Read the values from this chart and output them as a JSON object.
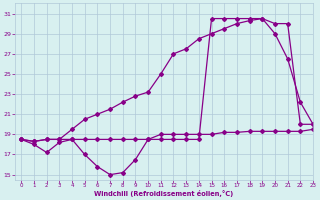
{
  "line1_x": [
    0,
    1,
    2,
    3,
    4,
    5,
    6,
    7,
    8,
    9,
    10,
    11,
    12,
    13,
    14,
    15,
    16,
    17,
    18,
    19,
    20,
    21,
    22,
    23
  ],
  "line1_y": [
    18.5,
    18.3,
    18.5,
    18.5,
    18.5,
    18.5,
    18.5,
    18.5,
    18.5,
    18.5,
    18.5,
    18.5,
    18.5,
    18.5,
    18.5,
    30.5,
    30.5,
    30.5,
    30.5,
    30.5,
    30.0,
    30.0,
    20.0,
    20.0
  ],
  "line2_x": [
    0,
    1,
    2,
    3,
    4,
    5,
    6,
    7,
    8,
    9,
    10,
    11,
    12,
    13,
    14,
    15,
    16,
    17,
    18,
    19,
    20,
    21,
    22,
    23
  ],
  "line2_y": [
    18.5,
    18.3,
    18.5,
    18.5,
    19.5,
    20.5,
    21.0,
    21.5,
    22.2,
    22.8,
    23.2,
    25.0,
    27.0,
    27.5,
    28.5,
    29.0,
    29.5,
    30.0,
    30.3,
    30.5,
    29.0,
    26.5,
    22.2,
    20.0
  ],
  "line3_x": [
    0,
    1,
    2,
    3,
    4,
    5,
    6,
    7,
    8,
    9,
    10,
    11,
    12,
    13,
    14,
    15,
    16,
    17,
    18,
    19,
    20,
    21,
    22,
    23
  ],
  "line3_y": [
    18.5,
    18.0,
    17.2,
    18.2,
    18.5,
    17.0,
    15.8,
    15.0,
    15.2,
    16.5,
    18.5,
    19.0,
    19.0,
    19.0,
    19.0,
    19.0,
    19.2,
    19.2,
    19.3,
    19.3,
    19.3,
    19.3,
    19.3,
    19.5
  ],
  "line_color": "#880088",
  "marker": "D",
  "marker_size": 2.0,
  "linewidth": 0.9,
  "background_color": "#d8f0f0",
  "grid_color": "#b0c8d8",
  "xlabel": "Windchill (Refroidissement éolien,°C)",
  "ylim": [
    14.5,
    32
  ],
  "yticks": [
    15,
    17,
    19,
    21,
    23,
    25,
    27,
    29,
    31
  ],
  "xlim": [
    -0.5,
    23
  ],
  "xticks": [
    0,
    1,
    2,
    3,
    4,
    5,
    6,
    7,
    8,
    9,
    10,
    11,
    12,
    13,
    14,
    15,
    16,
    17,
    18,
    19,
    20,
    21,
    22,
    23
  ]
}
